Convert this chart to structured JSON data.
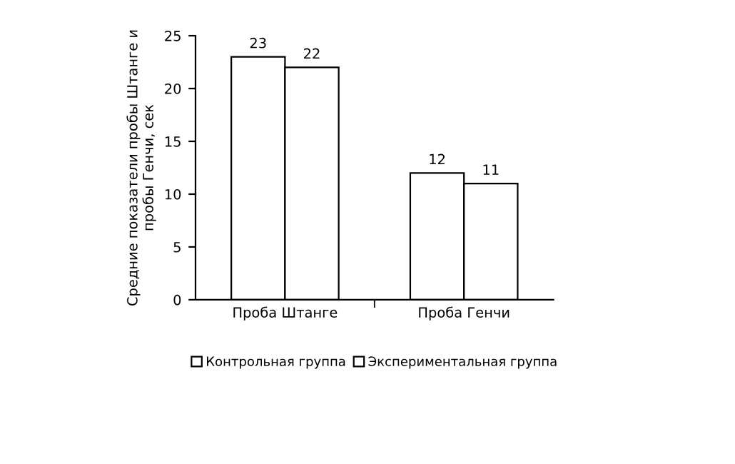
{
  "chart_data": {
    "type": "bar",
    "ylabel": "Средние показатели пробы Штанге и\nпробы Генчи, сек",
    "categories": [
      "Проба Штанге",
      "Проба Генчи"
    ],
    "series": [
      {
        "name": "Контрольная группа",
        "color": "#ffffff",
        "values": [
          23,
          12
        ]
      },
      {
        "name": "Экспериментальная группа",
        "color": "#ffffff",
        "values": [
          22,
          11
        ]
      }
    ],
    "ylim": [
      0,
      25
    ],
    "yticks": [
      0,
      5,
      10,
      15,
      20,
      25
    ],
    "data_labels": true,
    "legend": "bottom",
    "grid": false
  }
}
